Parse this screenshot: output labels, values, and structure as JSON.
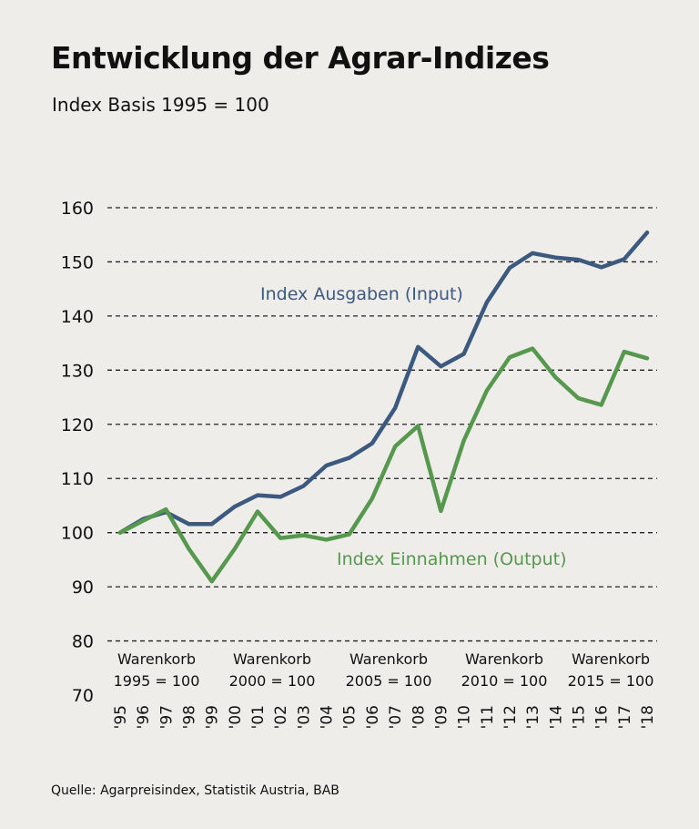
{
  "colors": {
    "input": "#3c5a80",
    "output": "#56984e",
    "background": "#efedea",
    "grid": "#222222"
  },
  "source": "Quelle: Agarpreisindex, Statistik Austria, BAB",
  "chart_data": {
    "type": "line",
    "title": "Entwicklung der Agrar-Indizes",
    "subtitle": "Index Basis 1995 = 100",
    "x": [
      "'95",
      "'96",
      "'97",
      "'98",
      "'99",
      "'00",
      "'01",
      "'02",
      "'03",
      "'04",
      "'05",
      "'06",
      "'07",
      "'08",
      "'09",
      "'10",
      "'11",
      "'12",
      "'13",
      "'14",
      "'15",
      "'16",
      "'17",
      "'18"
    ],
    "ylim": [
      70,
      160
    ],
    "yticks": [
      70,
      80,
      90,
      100,
      110,
      120,
      130,
      140,
      150,
      160
    ],
    "grid": true,
    "series": [
      {
        "name": "Index Ausgaben (Input)",
        "color": "#3c5a80",
        "values": [
          100,
          102.5,
          103.8,
          101.6,
          101.6,
          104.8,
          106.9,
          106.6,
          108.6,
          112.4,
          113.8,
          116.5,
          123,
          134.3,
          130.7,
          133,
          142.5,
          148.9,
          151.6,
          150.8,
          150.4,
          149,
          150.5,
          155.4
        ]
      },
      {
        "name": "Index Einnahmen (Output)",
        "color": "#56984e",
        "values": [
          100,
          102.2,
          104.3,
          97,
          91,
          97,
          103.9,
          99,
          99.5,
          98.7,
          99.7,
          106.3,
          115.9,
          119.7,
          104,
          117,
          126.2,
          132.4,
          134,
          128.7,
          124.8,
          123.6,
          133.4,
          132.2
        ]
      }
    ],
    "annotations": [
      {
        "line1": "Warenkorb",
        "line2": "1995 = 100"
      },
      {
        "line1": "Warenkorb",
        "line2": "2000 = 100"
      },
      {
        "line1": "Warenkorb",
        "line2": "2005 = 100"
      },
      {
        "line1": "Warenkorb",
        "line2": "2010 = 100"
      },
      {
        "line1": "Warenkorb",
        "line2": "2015 = 100"
      }
    ]
  }
}
